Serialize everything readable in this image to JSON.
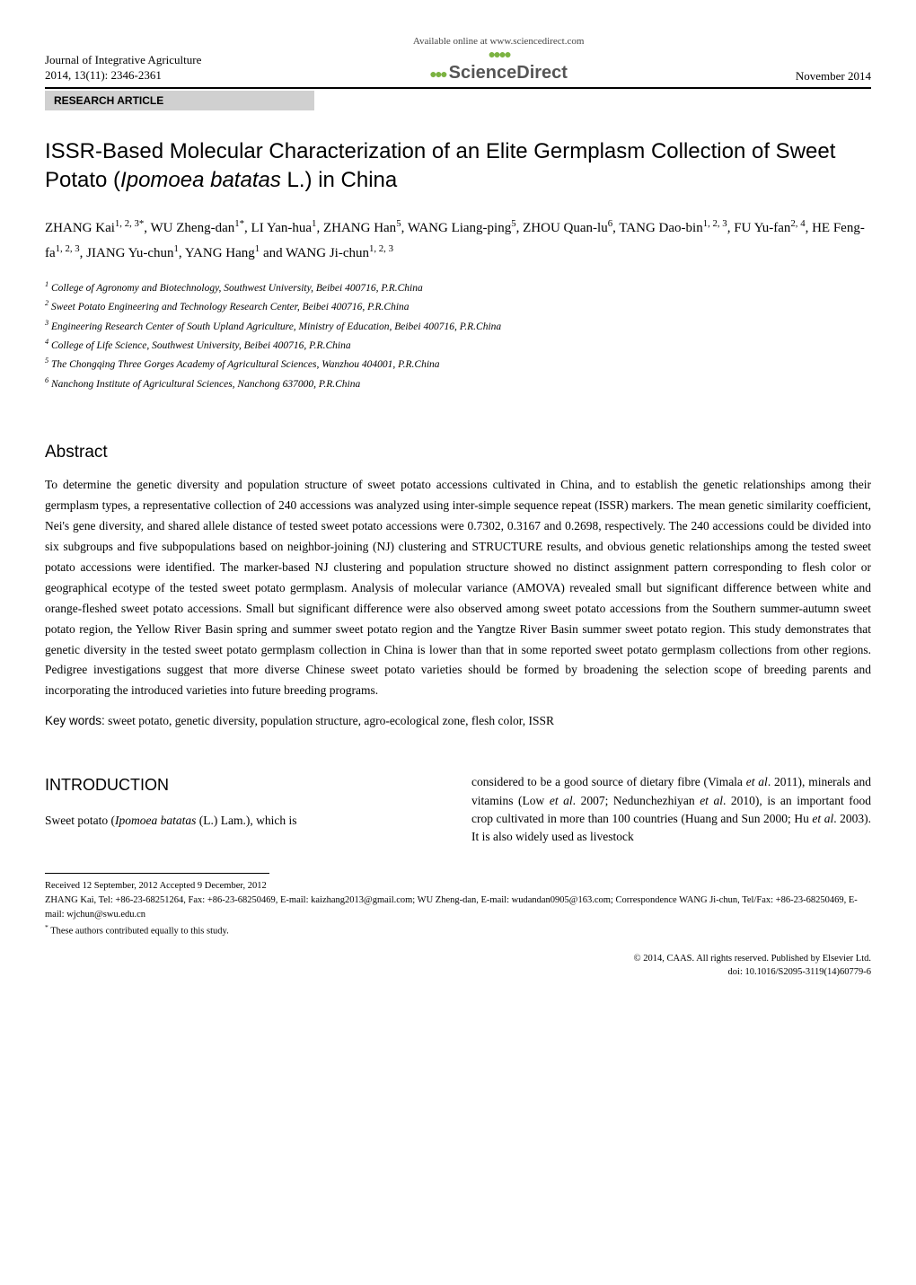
{
  "header": {
    "journal_line1": "Journal of Integrative Agriculture",
    "journal_line2": "2014, 13(11): 2346-2361",
    "available_online": "Available online at www.sciencedirect.com",
    "sciencedirect": "ScienceDirect",
    "date": "November 2014",
    "research_article": "RESEARCH  ARTICLE"
  },
  "title": "ISSR-Based Molecular Characterization of an Elite Germplasm Collection of Sweet Potato (<span class=\"italic\">Ipomoea batatas</span> L.) in China",
  "authors": "ZHANG Kai<sup>1, 2, 3*</sup>, WU Zheng-dan<sup>1*</sup>, LI Yan-hua<sup>1</sup>, ZHANG Han<sup>5</sup>, WANG Liang-ping<sup>5</sup>, ZHOU Quan-lu<sup>6</sup>, TANG Dao-bin<sup>1, 2, 3</sup>, FU Yu-fan<sup>2, 4</sup>, HE Feng-fa<sup>1, 2, 3</sup>, JIANG Yu-chun<sup>1</sup>, YANG Hang<sup>1</sup> and WANG Ji-chun<sup>1, 2, 3</sup>",
  "affiliations": [
    "<sup>1</sup> College of Agronomy and Biotechnology, Southwest University, Beibei 400716, P.R.China",
    "<sup>2</sup> Sweet Potato Engineering and Technology Research Center, Beibei 400716, P.R.China",
    "<sup>3</sup> Engineering Research Center of South Upland Agriculture, Ministry of Education, Beibei 400716, P.R.China",
    "<sup>4</sup> College of Life Science, Southwest University, Beibei 400716, P.R.China",
    "<sup>5</sup> The Chongqing Three Gorges Academy of Agricultural Sciences, Wanzhou 404001, P.R.China",
    "<sup>6</sup> Nanchong Institute of Agricultural Sciences, Nanchong 637000, P.R.China"
  ],
  "abstract_heading": "Abstract",
  "abstract_body": "To determine the genetic diversity and population structure of sweet potato accessions cultivated in China, and to establish the genetic relationships among their germplasm types, a representative collection of 240 accessions was analyzed using inter-simple sequence repeat (ISSR) markers. The mean genetic similarity coefficient, Nei's gene diversity, and shared allele distance of tested sweet potato accessions were 0.7302, 0.3167 and 0.2698, respectively. The 240 accessions could be divided into six subgroups and five subpopulations based on neighbor-joining (NJ) clustering and STRUCTURE results, and obvious genetic relationships among the tested sweet potato accessions were identified. The marker-based NJ clustering and population structure showed no distinct assignment pattern corresponding to flesh color or geographical ecotype of the tested sweet potato germplasm. Analysis of molecular variance (AMOVA) revealed small but significant difference between white and orange-fleshed sweet potato accessions. Small but significant difference were also observed among sweet potato accessions from the Southern summer-autumn sweet potato region, the Yellow River Basin spring and summer sweet potato region and the Yangtze River Basin summer sweet potato region. This study demonstrates that genetic diversity in the tested sweet potato germplasm collection in China is lower than that in some reported sweet potato germplasm collections from other regions. Pedigree investigations suggest that more diverse Chinese sweet potato varieties should be formed by broadening the selection scope of breeding parents and incorporating the introduced varieties into future breeding programs.",
  "keywords_label": "Key words:",
  "keywords_text": " sweet potato, genetic diversity, population structure, agro-ecological zone, flesh color, ISSR",
  "introduction_heading": "INTRODUCTION",
  "intro_col1": "Sweet potato (<span class=\"italic\">Ipomoea batatas</span> (L.) Lam.), which is",
  "intro_col2": "considered to be a good source of dietary fibre (Vimala <span class=\"italic\">et al</span>. 2011), minerals and vitamins (Low <span class=\"italic\">et al</span>. 2007; Nedunchezhiyan <span class=\"italic\">et al</span>. 2010), is an important food crop cultivated in more than 100 countries (Huang and Sun 2000; Hu <span class=\"italic\">et al</span>. 2003). It is also widely used as livestock",
  "footer": {
    "received": "Received 12 September, 2012    Accepted 9 December, 2012",
    "correspondence": "ZHANG Kai, Tel: +86-23-68251264, Fax: +86-23-68250469, E-mail: kaizhang2013@gmail.com; WU Zheng-dan, E-mail: wudandan0905@163.com; Correspondence WANG Ji-chun, Tel/Fax: +86-23-68250469, E-mail: wjchun@swu.edu.cn",
    "equal_contribution": "<sup>*</sup> These authors contributed equally to this study.",
    "copyright_line1": "© 2014, CAAS. All rights reserved. Published by Elsevier Ltd.",
    "copyright_line2": "doi: 10.1016/S2095-3119(14)60779-6"
  }
}
